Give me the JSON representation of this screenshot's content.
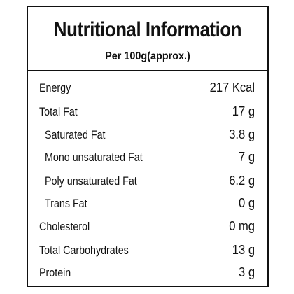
{
  "panel": {
    "title": "Nutritional Information",
    "subtitle": "Per 100g(approx.)"
  },
  "nutrients": [
    {
      "name": "Energy",
      "value": "217 Kcal"
    },
    {
      "name": "Total Fat",
      "value": "17 g"
    },
    {
      "name": "Saturated Fat",
      "value": "3.8 g"
    },
    {
      "name": "Mono unsaturated Fat",
      "value": "7 g"
    },
    {
      "name": "Poly unsaturated Fat",
      "value": "6.2 g"
    },
    {
      "name": "Trans Fat",
      "value": "0 g"
    },
    {
      "name": "Cholesterol",
      "value": "0 mg"
    },
    {
      "name": "Total Carbohydrates",
      "value": "13 g"
    },
    {
      "name": "Protein",
      "value": "3 g"
    }
  ]
}
